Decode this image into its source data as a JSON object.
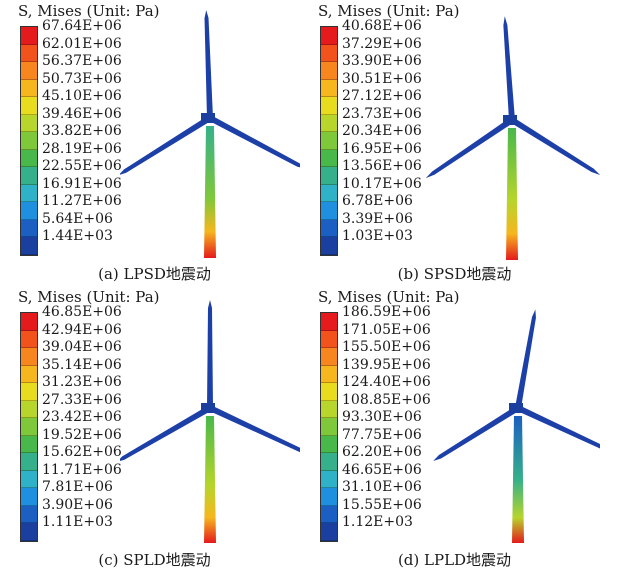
{
  "legend_title": "S, Mises (Unit: Pa)",
  "colorbar_colors": [
    "#e41a1c",
    "#f2521c",
    "#f7861e",
    "#f6b61e",
    "#e8dc1f",
    "#b7d52b",
    "#7fc83a",
    "#48b84b",
    "#35b08a",
    "#2fb2c8",
    "#1f8fe0",
    "#1b5fc2",
    "#1a3f9e"
  ],
  "panels": [
    {
      "caption": "(a) LPSD地震动",
      "ticks": [
        "67.64E+06",
        "62.01E+06",
        "56.37E+06",
        "50.73E+06",
        "45.10E+06",
        "39.46E+06",
        "33.82E+06",
        "28.19E+06",
        "22.55E+06",
        "16.91E+06",
        "11.27E+06",
        "5.64E+06",
        "1.44E+03"
      ]
    },
    {
      "caption": "(b) SPSD地震动",
      "ticks": [
        "40.68E+06",
        "37.29E+06",
        "33.90E+06",
        "30.51E+06",
        "27.12E+06",
        "23.73E+06",
        "20.34E+06",
        "16.95E+06",
        "13.56E+06",
        "10.17E+06",
        "6.78E+06",
        "3.39E+06",
        "1.03E+03"
      ]
    },
    {
      "caption": "(c) SPLD地震动",
      "ticks": [
        "46.85E+06",
        "42.94E+06",
        "39.04E+06",
        "35.14E+06",
        "31.23E+06",
        "27.33E+06",
        "23.42E+06",
        "19.52E+06",
        "15.62E+06",
        "11.71E+06",
        "7.81E+06",
        "3.90E+06",
        "1.11E+03"
      ]
    },
    {
      "caption": "(d) LPLD地震动",
      "ticks": [
        "186.59E+06",
        "171.05E+06",
        "155.50E+06",
        "139.95E+06",
        "124.40E+06",
        "108.85E+06",
        "93.30E+06",
        "77.75E+06",
        "62.20E+06",
        "46.65E+06",
        "31.10E+06",
        "15.55E+06",
        "1.12E+03"
      ]
    }
  ]
}
